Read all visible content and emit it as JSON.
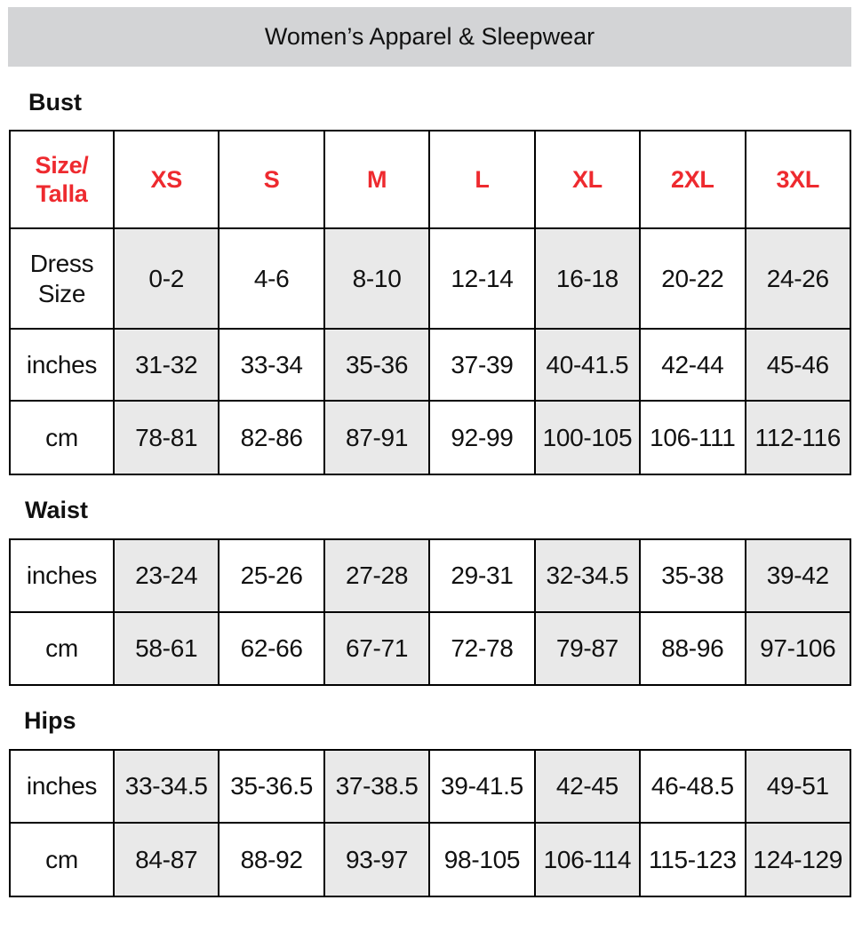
{
  "title": "Women’s Apparel & Sleepwear",
  "colors": {
    "header_red": "#ee2a2f",
    "title_bar": "#d3d4d6",
    "shaded_column": "#e9e9e9"
  },
  "sizes_label": "Size/ Talla",
  "sizes": [
    "XS",
    "S",
    "M",
    "L",
    "XL",
    "2XL",
    "3XL"
  ],
  "sections": [
    {
      "heading": "Bust",
      "rows": [
        {
          "label": "Dress Size",
          "values": [
            "0-2",
            "4-6",
            "8-10",
            "12-14",
            "16-18",
            "20-22",
            "24-26"
          ]
        },
        {
          "label": "inches",
          "values": [
            "31-32",
            "33-34",
            "35-36",
            "37-39",
            "40-41.5",
            "42-44",
            "45-46"
          ]
        },
        {
          "label": "cm",
          "values": [
            "78-81",
            "82-86",
            "87-91",
            "92-99",
            "100-105",
            "106-111",
            "112-116"
          ]
        }
      ]
    },
    {
      "heading": "Waist",
      "rows": [
        {
          "label": "inches",
          "values": [
            "23-24",
            "25-26",
            "27-28",
            "29-31",
            "32-34.5",
            "35-38",
            "39-42"
          ]
        },
        {
          "label": "cm",
          "values": [
            "58-61",
            "62-66",
            "67-71",
            "72-78",
            "79-87",
            "88-96",
            "97-106"
          ]
        }
      ]
    },
    {
      "heading": "Hips",
      "rows": [
        {
          "label": "inches",
          "values": [
            "33-34.5",
            "35-36.5",
            "37-38.5",
            "39-41.5",
            "42-45",
            "46-48.5",
            "49-51"
          ]
        },
        {
          "label": "cm",
          "values": [
            "84-87",
            "88-92",
            "93-97",
            "98-105",
            "106-114",
            "115-123",
            "124-129"
          ]
        }
      ]
    }
  ]
}
